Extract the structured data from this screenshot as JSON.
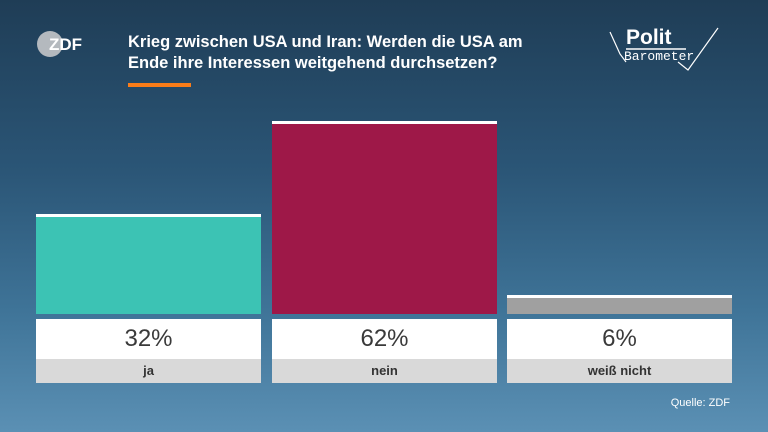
{
  "brand": {
    "zdf_logo_text": "ZDF",
    "polit_logo_line1": "Polit",
    "polit_logo_line2": "Barometer"
  },
  "header": {
    "title_line1": "Krieg zwischen USA und Iran: Werden die USA am",
    "title_line2": "Ende ihre Interessen weitgehend durchsetzen?",
    "accent_color": "#fa7d19"
  },
  "chart_data": {
    "type": "bar",
    "title": "Krieg zwischen USA und Iran: Werden die USA am Ende ihre Interessen weitgehend durchsetzen?",
    "categories": [
      "ja",
      "nein",
      "weiß nicht"
    ],
    "values": [
      32,
      62,
      6
    ],
    "value_labels": [
      "32%",
      "62%",
      "6%"
    ],
    "colors": [
      "#3cc3b4",
      "#9e1848",
      "#a0a0a0"
    ],
    "ylim": [
      0,
      100
    ],
    "unit": "%",
    "grid": false,
    "legend": "none"
  },
  "footer": {
    "source": "Quelle: ZDF"
  }
}
